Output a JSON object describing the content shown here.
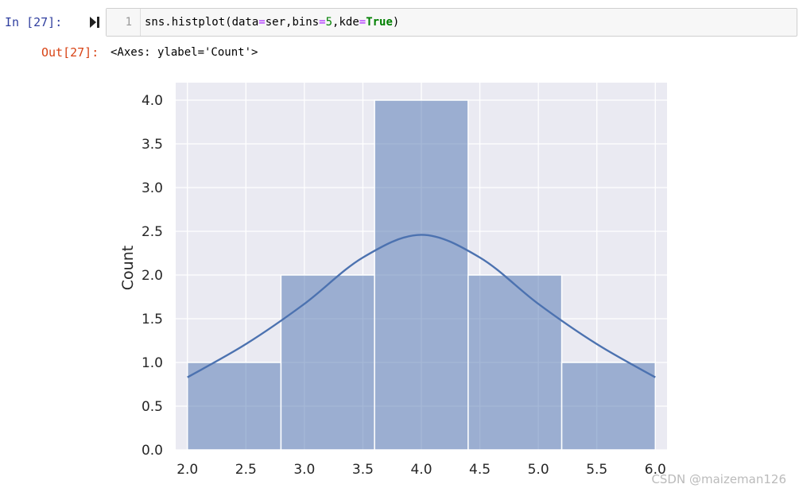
{
  "cell": {
    "in_prompt": "In  [27]:",
    "line_number": "1",
    "code_parts": [
      "sns.histplot(data",
      "=",
      "ser,bins",
      "=",
      "5",
      ",kde",
      "=",
      "True",
      ")"
    ],
    "out_prompt": "Out[27]:",
    "output_text": "<Axes: ylabel='Count'>"
  },
  "chart_data": {
    "type": "bar",
    "subtype": "histogram-with-kde",
    "bins": [
      {
        "start": 2.0,
        "end": 2.8,
        "count": 1
      },
      {
        "start": 2.8,
        "end": 3.6,
        "count": 2
      },
      {
        "start": 3.6,
        "end": 4.4,
        "count": 4
      },
      {
        "start": 4.4,
        "end": 5.2,
        "count": 2
      },
      {
        "start": 5.2,
        "end": 6.0,
        "count": 1
      }
    ],
    "kde": {
      "x": [
        2.0,
        2.5,
        3.0,
        3.5,
        4.0,
        4.5,
        5.0,
        5.5,
        6.0
      ],
      "y": [
        0.83,
        1.21,
        1.67,
        2.2,
        2.46,
        2.2,
        1.67,
        1.21,
        0.83
      ]
    },
    "xlabel": "",
    "ylabel": "Count",
    "xlim": [
      1.9,
      6.1
    ],
    "ylim": [
      0,
      4.2
    ],
    "xticks": [
      "2.0",
      "2.5",
      "3.0",
      "3.5",
      "4.0",
      "4.5",
      "5.0",
      "5.5",
      "6.0"
    ],
    "yticks": [
      "0.0",
      "0.5",
      "1.0",
      "1.5",
      "2.0",
      "2.5",
      "3.0",
      "3.5",
      "4.0"
    ],
    "grid": true,
    "colors": {
      "background": "#eaeaf2",
      "bar_fill": "#4c72b0",
      "bar_alpha": 0.5,
      "kde_line": "#4c72b0",
      "grid": "#ffffff"
    }
  },
  "watermark": "CSDN @maizeman126"
}
